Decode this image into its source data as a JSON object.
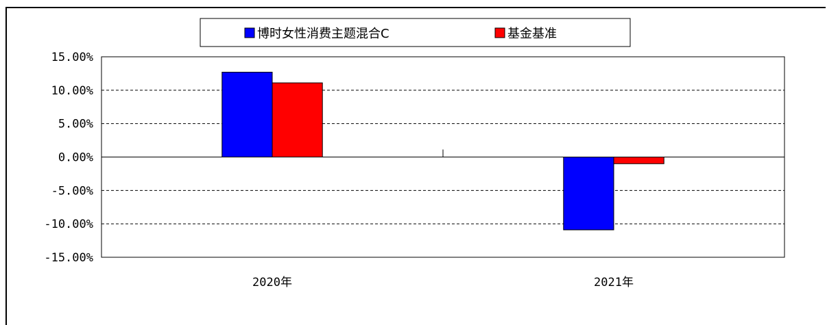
{
  "chart_data": {
    "type": "bar",
    "categories": [
      "2020年",
      "2021年"
    ],
    "series": [
      {
        "name": "博时女性消费主题混合C",
        "color": "#0000ff",
        "values": [
          12.7,
          -10.9
        ]
      },
      {
        "name": "基金基准",
        "color": "#ff0000",
        "values": [
          11.1,
          -1.0
        ]
      }
    ],
    "ylim": [
      -15,
      15
    ],
    "yticks": [
      15,
      10,
      5,
      0,
      -5,
      -10,
      -15
    ],
    "ytick_labels": [
      "15.00%",
      "10.00%",
      "5.00%",
      "0.00%",
      "-5.00%",
      "-10.00%",
      "-15.00%"
    ],
    "grid": true,
    "legend": "top"
  }
}
